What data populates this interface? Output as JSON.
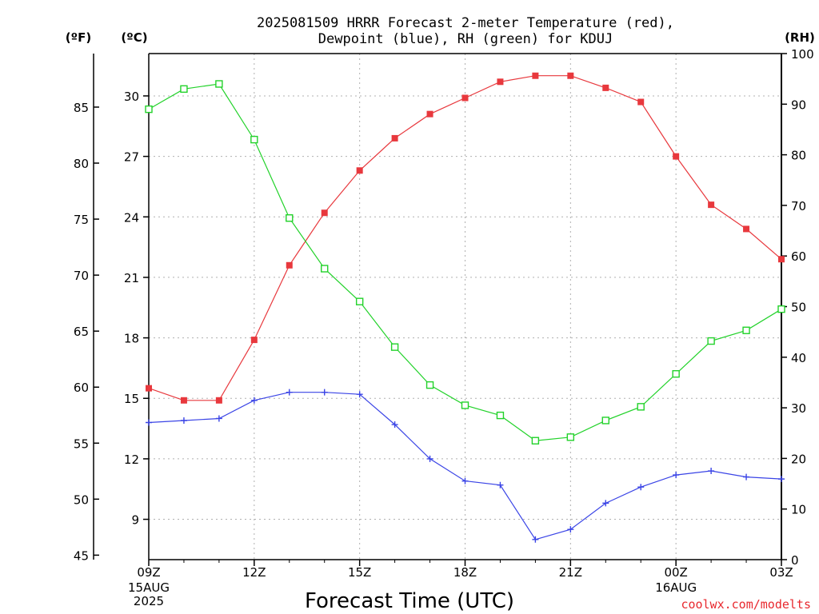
{
  "chart_data": {
    "type": "line",
    "title_line1": "2025081509 HRRR Forecast 2-meter Temperature (red),",
    "title_line2": "Dewpoint (blue), RH (green) for KDUJ",
    "unit_f": "(ºF)",
    "unit_c": "(ºC)",
    "unit_rh": "(RH)",
    "xlabel": "Forecast Time (UTC)",
    "credit": "coolwx.com/modelts",
    "x_ticks": [
      {
        "index": 0,
        "label": "09Z",
        "sub": [
          "15AUG",
          "2025"
        ]
      },
      {
        "index": 3,
        "label": "12Z",
        "sub": []
      },
      {
        "index": 6,
        "label": "15Z",
        "sub": []
      },
      {
        "index": 9,
        "label": "18Z",
        "sub": []
      },
      {
        "index": 12,
        "label": "21Z",
        "sub": []
      },
      {
        "index": 15,
        "label": "00Z",
        "sub": [
          "16AUG"
        ]
      },
      {
        "index": 18,
        "label": "03Z",
        "sub": []
      }
    ],
    "x_count": 18,
    "celsius_ylim": [
      7,
      32.1
    ],
    "celsius_ticks": [
      "9",
      "12",
      "15",
      "18",
      "21",
      "24",
      "27",
      "30"
    ],
    "fahrenheit_ticks": [
      "45",
      "50",
      "55",
      "60",
      "65",
      "70",
      "75",
      "80",
      "85"
    ],
    "rh_ylim": [
      0,
      100
    ],
    "rh_ticks": [
      "0",
      "10",
      "20",
      "30",
      "40",
      "50",
      "60",
      "70",
      "80",
      "90",
      "100"
    ],
    "series": [
      {
        "name": "Temperature",
        "unit": "C",
        "color": "#e8383d",
        "marker": "filled-square",
        "values": [
          15.5,
          14.9,
          14.9,
          17.9,
          21.6,
          24.2,
          26.3,
          27.9,
          29.1,
          29.9,
          30.7,
          31.0,
          31.0,
          30.4,
          29.7,
          27.0,
          24.6,
          23.4,
          21.9
        ]
      },
      {
        "name": "Dewpoint",
        "unit": "C",
        "color": "#3a44e6",
        "marker": "plus",
        "values": [
          13.8,
          13.9,
          14.0,
          14.9,
          15.3,
          15.3,
          15.2,
          13.7,
          12.0,
          10.9,
          10.7,
          8.0,
          8.5,
          9.8,
          10.6,
          11.2,
          11.4,
          11.1,
          11.0
        ]
      },
      {
        "name": "RH",
        "unit": "%",
        "color": "#22d22a",
        "marker": "open-square",
        "values": [
          89,
          93,
          94,
          83,
          67.5,
          57.5,
          51,
          42,
          34.5,
          30.5,
          28.5,
          23.5,
          24.2,
          27.5,
          30.2,
          36.7,
          43.2,
          45.3,
          49.5
        ]
      }
    ]
  }
}
